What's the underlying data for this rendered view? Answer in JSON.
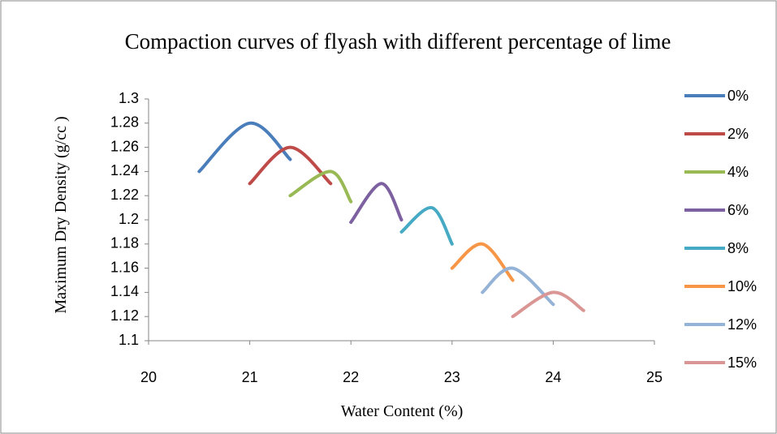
{
  "chart_data": {
    "type": "line",
    "title": "Compaction curves of flyash with different percentage of lime",
    "x_label": "Water Content (%)",
    "y_label": "Maximum Dry Density (g/cc )",
    "xlim": [
      20,
      25
    ],
    "xticks": [
      20,
      21,
      22,
      23,
      24,
      25
    ],
    "ylim": [
      1.1,
      1.3
    ],
    "yticks": [
      1.1,
      1.12,
      1.14,
      1.16,
      1.18,
      1.2,
      1.22,
      1.24,
      1.26,
      1.28,
      1.3
    ],
    "grid": false,
    "legend": "right",
    "smooth": true,
    "series": [
      {
        "name": "0%",
        "color": "#4a7ebb",
        "x": [
          20.5,
          21,
          21.4
        ],
        "values": [
          1.24,
          1.28,
          1.25
        ]
      },
      {
        "name": "2%",
        "color": "#be4b48",
        "x": [
          21,
          21.4,
          21.8
        ],
        "values": [
          1.23,
          1.26,
          1.23
        ]
      },
      {
        "name": "4%",
        "color": "#98b954",
        "x": [
          21.4,
          21.8,
          22
        ],
        "values": [
          1.22,
          1.24,
          1.215
        ]
      },
      {
        "name": "6%",
        "color": "#7d60a0",
        "x": [
          22,
          22.3,
          22.5
        ],
        "values": [
          1.198,
          1.23,
          1.2
        ]
      },
      {
        "name": "8%",
        "color": "#46aac5",
        "x": [
          22.5,
          22.8,
          23
        ],
        "values": [
          1.19,
          1.21,
          1.18
        ]
      },
      {
        "name": "10%",
        "color": "#f79646",
        "x": [
          23,
          23.3,
          23.6
        ],
        "values": [
          1.16,
          1.18,
          1.15
        ]
      },
      {
        "name": "12%",
        "color": "#95b3d7",
        "x": [
          23.3,
          23.6,
          24
        ],
        "values": [
          1.14,
          1.16,
          1.13
        ]
      },
      {
        "name": "15%",
        "color": "#d99694",
        "x": [
          23.6,
          24,
          24.3
        ],
        "values": [
          1.12,
          1.14,
          1.125
        ]
      }
    ]
  }
}
